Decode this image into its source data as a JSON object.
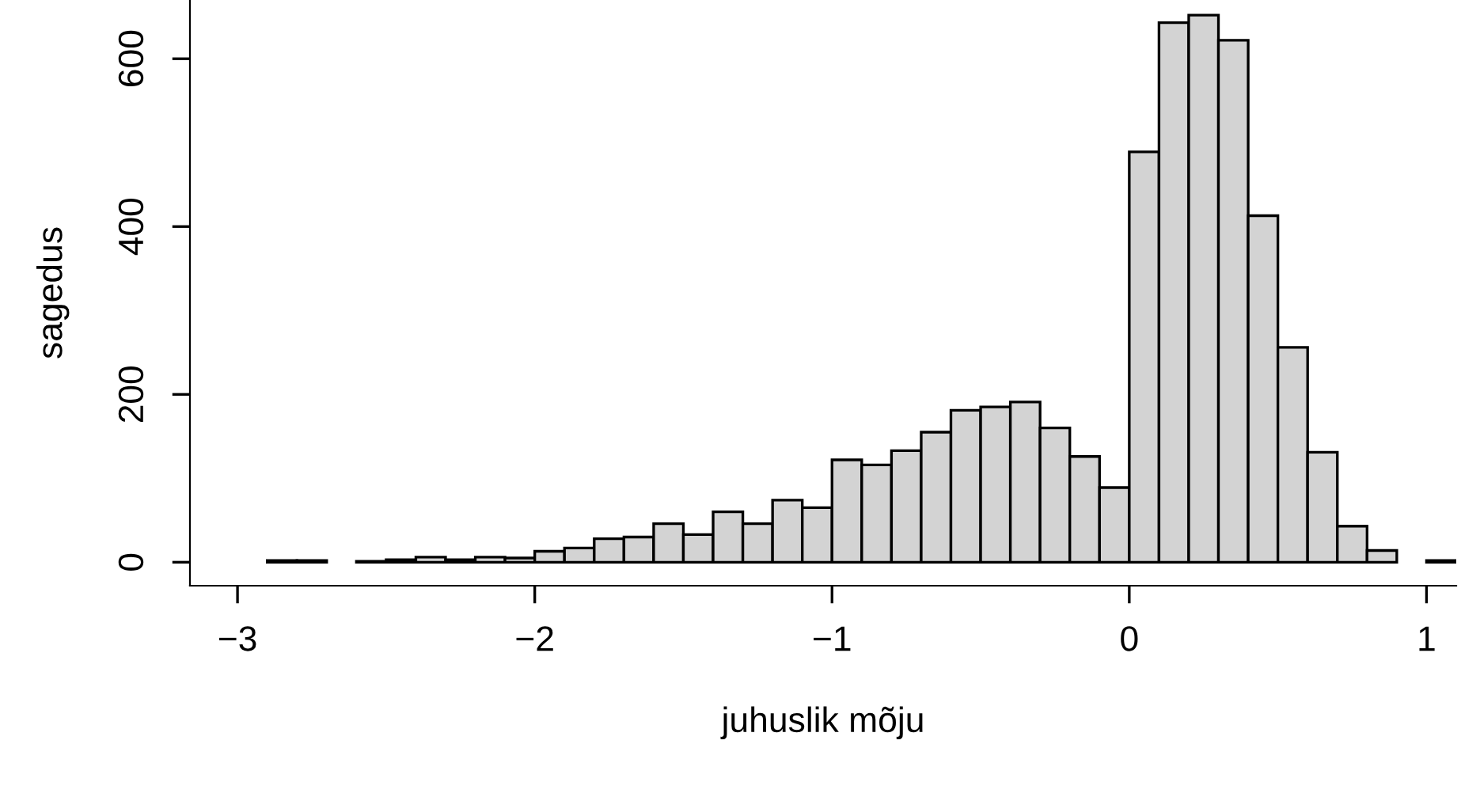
{
  "chart_data": {
    "type": "histogram",
    "xlabel": "juhuslik mõju",
    "ylabel": "sagedus",
    "bins": [
      -2.9,
      -2.8,
      -2.7,
      -2.6,
      -2.5,
      -2.4,
      -2.3,
      -2.2,
      -2.1,
      -2.0,
      -1.9,
      -1.8,
      -1.7,
      -1.6,
      -1.5,
      -1.4,
      -1.3,
      -1.2,
      -1.1,
      -1.0,
      -0.9,
      -0.8,
      -0.7,
      -0.6,
      -0.5,
      -0.4,
      -0.3,
      -0.2,
      -0.1,
      0.0,
      0.1,
      0.2,
      0.3,
      0.4,
      0.5,
      0.6,
      0.7,
      0.8,
      0.9,
      1.0,
      1.1
    ],
    "values": [
      2,
      2,
      0,
      1,
      3,
      6,
      3,
      6,
      5,
      13,
      17,
      28,
      30,
      46,
      33,
      60,
      46,
      74,
      65,
      122,
      116,
      133,
      155,
      181,
      185,
      191,
      160,
      126,
      89,
      489,
      643,
      652,
      622,
      413,
      256,
      131,
      43,
      14,
      0,
      2
    ],
    "color": "#d3d3d3",
    "xlim": [
      -3.16,
      1.1
    ],
    "ylim": [
      -28,
      670
    ],
    "xticks": [
      {
        "value": -3,
        "label": "−3"
      },
      {
        "value": -2,
        "label": "−2"
      },
      {
        "value": -1,
        "label": "−1"
      },
      0,
      1
    ],
    "yticks": [
      0,
      200,
      400,
      600
    ],
    "grid": false
  }
}
